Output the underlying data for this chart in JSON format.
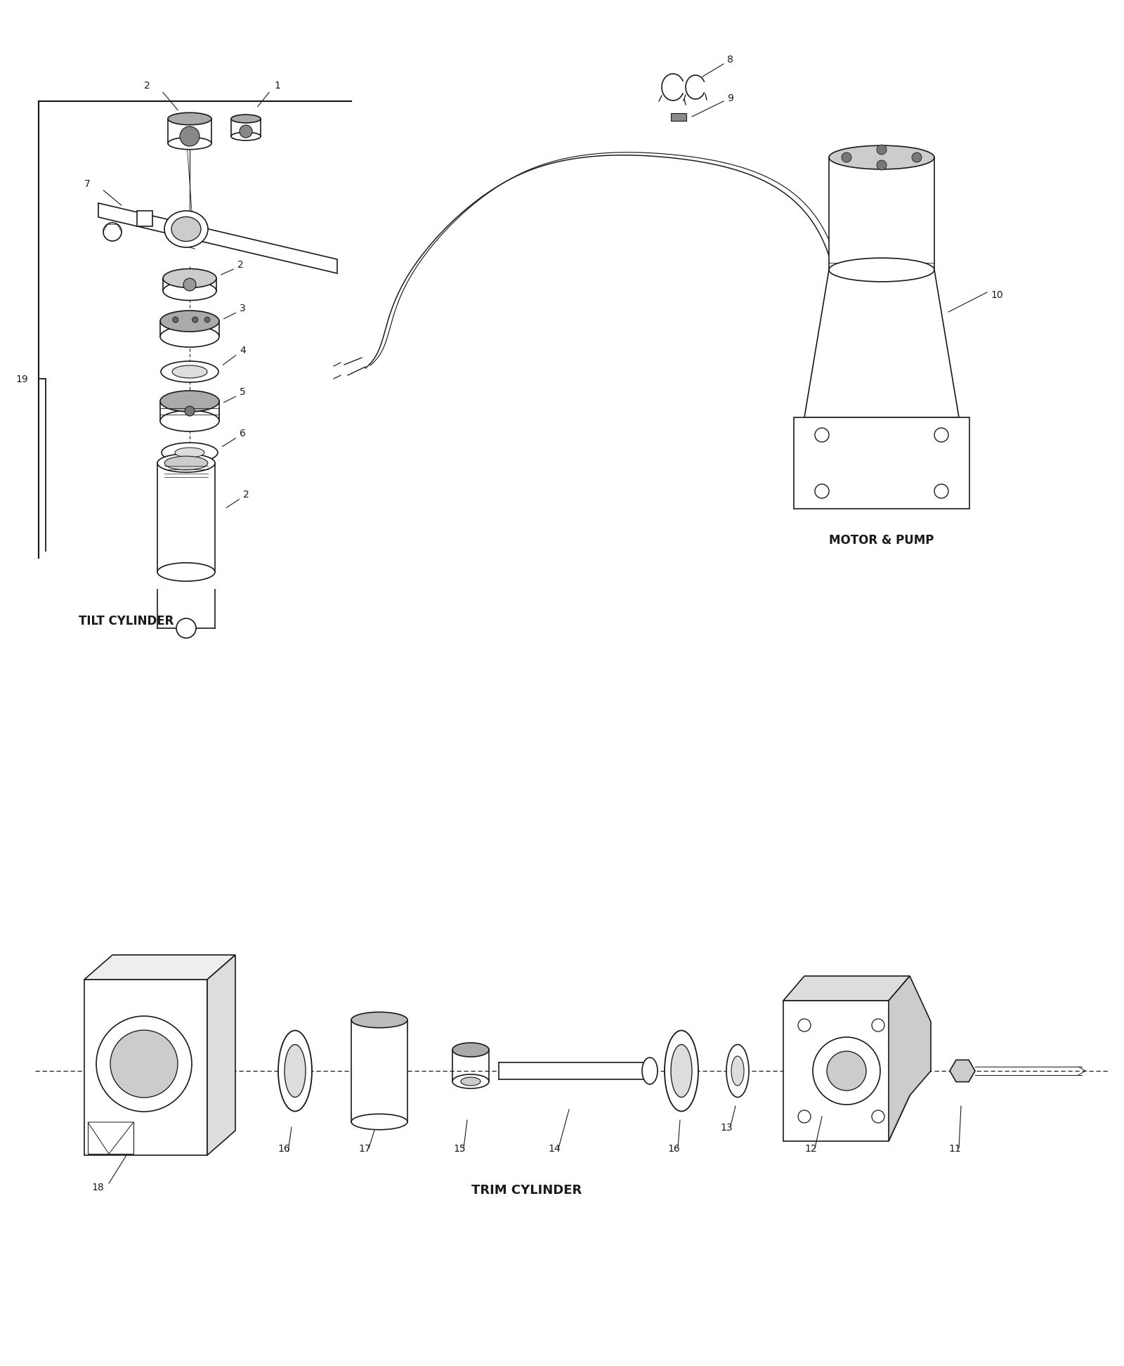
{
  "bg_color": "#ffffff",
  "line_color": "#1a1a1a",
  "fig_width": 16.0,
  "fig_height": 19.44,
  "labels": {
    "tilt_cylinder": "TILT CYLINDER",
    "motor_pump": "MOTOR & PUMP",
    "trim_cylinder": "TRIM CYLINDER"
  }
}
